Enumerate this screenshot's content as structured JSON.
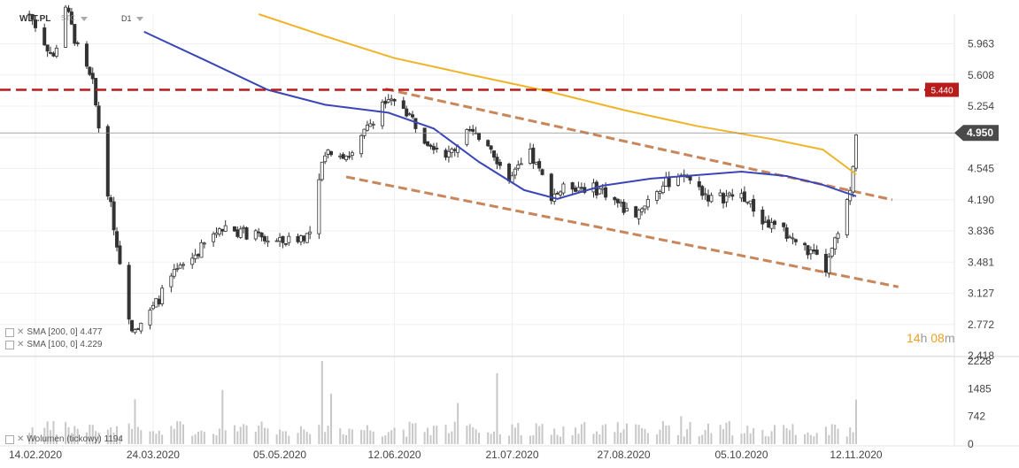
{
  "header": {
    "symbol": "WLT.PL",
    "feed": "STC",
    "interval": "D1"
  },
  "timer": {
    "hours": "14",
    "h_unit": "h",
    "minutes": "08",
    "m_unit": "m"
  },
  "indicators": [
    {
      "label": "SMA [200, 0] 4.477",
      "color": "#f0b429"
    },
    {
      "label": "SMA [100, 0] 4.229",
      "color": "#3a46b8"
    }
  ],
  "volume_label": "Wolumen (tickowy) 1194",
  "colors": {
    "bull": "#ffffff",
    "bear": "#333333",
    "wick": "#333333",
    "sma200": "#f0b429",
    "sma100": "#3a46b8",
    "resistance": "#b81c1c",
    "channel": "#c8865a",
    "volume": "#c8c8c8",
    "price_tag": "#4a4a4a",
    "resistance_tag": "#b81c1c"
  },
  "chart_data": {
    "type": "candlestick",
    "x_ticks": [
      "14.02.2020",
      "24.03.2020",
      "05.05.2020",
      "12.06.2020",
      "21.07.2020",
      "27.08.2020",
      "05.10.2020",
      "12.11.2020"
    ],
    "y_ticks": [
      5.963,
      5.608,
      5.254,
      4.9,
      4.545,
      4.19,
      3.836,
      3.481,
      3.127,
      2.772,
      2.418
    ],
    "y_tick_labels": [
      "5.963",
      "5.608",
      "5.254",
      "",
      "4.545",
      "4.190",
      "3.836",
      "3.481",
      "3.127",
      "2.772",
      "2.418"
    ],
    "ylim": [
      2.418,
      6.3
    ],
    "last_price": "4.950",
    "resistance": {
      "value": 5.44,
      "label": "5.440"
    },
    "channel": {
      "upper": [
        {
          "date": "2020-06-09",
          "y": 5.45
        },
        {
          "date": "2020-11-24",
          "y": 4.19
        }
      ],
      "lower": [
        {
          "date": "2020-05-27",
          "y": 4.45
        },
        {
          "date": "2020-11-26",
          "y": 3.2
        }
      ]
    },
    "sma200": [
      {
        "date": "2020-04-28",
        "y": 6.3
      },
      {
        "date": "2020-05-20",
        "y": 6.05
      },
      {
        "date": "2020-06-12",
        "y": 5.8
      },
      {
        "date": "2020-07-06",
        "y": 5.62
      },
      {
        "date": "2020-08-01",
        "y": 5.43
      },
      {
        "date": "2020-08-27",
        "y": 5.21
      },
      {
        "date": "2020-09-20",
        "y": 5.03
      },
      {
        "date": "2020-10-15",
        "y": 4.88
      },
      {
        "date": "2020-11-01",
        "y": 4.76
      },
      {
        "date": "2020-11-12",
        "y": 4.48
      }
    ],
    "sma100": [
      {
        "date": "2020-03-21",
        "y": 6.1
      },
      {
        "date": "2020-04-10",
        "y": 5.78
      },
      {
        "date": "2020-05-01",
        "y": 5.44
      },
      {
        "date": "2020-05-20",
        "y": 5.27
      },
      {
        "date": "2020-06-10",
        "y": 5.18
      },
      {
        "date": "2020-06-25",
        "y": 5.0
      },
      {
        "date": "2020-07-10",
        "y": 4.62
      },
      {
        "date": "2020-07-25",
        "y": 4.3
      },
      {
        "date": "2020-08-05",
        "y": 4.2
      },
      {
        "date": "2020-08-20",
        "y": 4.35
      },
      {
        "date": "2020-09-05",
        "y": 4.43
      },
      {
        "date": "2020-09-20",
        "y": 4.47
      },
      {
        "date": "2020-10-05",
        "y": 4.51
      },
      {
        "date": "2020-10-20",
        "y": 4.46
      },
      {
        "date": "2020-11-01",
        "y": 4.36
      },
      {
        "date": "2020-11-12",
        "y": 4.23
      }
    ],
    "price_path": [
      {
        "date": "2020-02-12",
        "y": 6.3
      },
      {
        "date": "2020-02-20",
        "y": 5.8
      },
      {
        "date": "2020-02-24",
        "y": 6.4
      },
      {
        "date": "2020-02-28",
        "y": 5.9
      },
      {
        "date": "2020-03-04",
        "y": 5.5
      },
      {
        "date": "2020-03-09",
        "y": 4.3
      },
      {
        "date": "2020-03-13",
        "y": 3.5
      },
      {
        "date": "2020-03-17",
        "y": 2.7
      },
      {
        "date": "2020-03-23",
        "y": 2.9
      },
      {
        "date": "2020-03-30",
        "y": 3.3
      },
      {
        "date": "2020-04-08",
        "y": 3.6
      },
      {
        "date": "2020-04-16",
        "y": 3.9
      },
      {
        "date": "2020-04-24",
        "y": 3.8
      },
      {
        "date": "2020-05-05",
        "y": 3.7
      },
      {
        "date": "2020-05-15",
        "y": 3.8
      },
      {
        "date": "2020-05-20",
        "y": 4.75
      },
      {
        "date": "2020-05-29",
        "y": 4.7
      },
      {
        "date": "2020-06-08",
        "y": 5.3
      },
      {
        "date": "2020-06-15",
        "y": 5.25
      },
      {
        "date": "2020-06-22",
        "y": 4.9
      },
      {
        "date": "2020-06-30",
        "y": 4.7
      },
      {
        "date": "2020-07-06",
        "y": 4.95
      },
      {
        "date": "2020-07-13",
        "y": 4.85
      },
      {
        "date": "2020-07-20",
        "y": 4.4
      },
      {
        "date": "2020-07-27",
        "y": 4.7
      },
      {
        "date": "2020-08-03",
        "y": 4.25
      },
      {
        "date": "2020-08-10",
        "y": 4.35
      },
      {
        "date": "2020-08-20",
        "y": 4.3
      },
      {
        "date": "2020-08-30",
        "y": 4.0
      },
      {
        "date": "2020-09-07",
        "y": 4.3
      },
      {
        "date": "2020-09-15",
        "y": 4.5
      },
      {
        "date": "2020-09-25",
        "y": 4.2
      },
      {
        "date": "2020-10-05",
        "y": 4.25
      },
      {
        "date": "2020-10-12",
        "y": 3.95
      },
      {
        "date": "2020-10-20",
        "y": 3.8
      },
      {
        "date": "2020-10-29",
        "y": 3.55
      },
      {
        "date": "2020-11-02",
        "y": 3.4
      },
      {
        "date": "2020-11-06",
        "y": 3.8
      },
      {
        "date": "2020-11-10",
        "y": 4.25
      },
      {
        "date": "2020-11-12",
        "y": 4.95
      }
    ],
    "volume": {
      "y_ticks": [
        2228,
        1485,
        742,
        0
      ],
      "y_tick_labels": [
        "2228",
        "1485",
        "742",
        "0"
      ],
      "ylim": [
        0,
        2228
      ],
      "spikes": [
        {
          "date": "2020-03-18",
          "v": 1200
        },
        {
          "date": "2020-04-16",
          "v": 1450
        },
        {
          "date": "2020-05-19",
          "v": 2228
        },
        {
          "date": "2020-05-22",
          "v": 1350
        },
        {
          "date": "2020-07-03",
          "v": 1100
        },
        {
          "date": "2020-07-16",
          "v": 1900
        },
        {
          "date": "2020-07-18",
          "v": 1400
        },
        {
          "date": "2020-09-15",
          "v": 750
        },
        {
          "date": "2020-11-12",
          "v": 1194
        }
      ]
    }
  }
}
